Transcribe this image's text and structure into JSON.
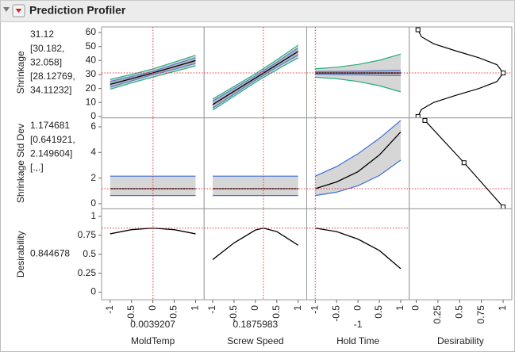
{
  "title": "Prediction Profiler",
  "chart_data": {
    "type": "profiler",
    "colors": {
      "current": "#e0393e",
      "ci": "#3b6ed8",
      "pi": "#1fae7a",
      "curve": "#000000",
      "band": "#d6d6d6"
    },
    "desirability_label": "Desirability",
    "desirability_xlim": [
      -0.08,
      1.1
    ],
    "desirability_xticks": [
      0,
      0.25,
      0.5,
      0.75,
      1
    ],
    "factors": [
      {
        "name": "MoldTemp",
        "current": 0.0039207,
        "xlim": [
          -1.2,
          1.2
        ],
        "xticks": [
          -1,
          -0.5,
          0,
          0.5,
          1
        ]
      },
      {
        "name": "Screw Speed",
        "current": 0.1875983,
        "xlim": [
          -1.2,
          1.2
        ],
        "xticks": [
          -1,
          -0.5,
          0,
          0.5,
          1
        ]
      },
      {
        "name": "Hold Time",
        "current": -1,
        "xlim": [
          -1.2,
          1.2
        ],
        "xticks": [
          -1,
          -0.5,
          0,
          0.5,
          1
        ]
      }
    ],
    "responses": [
      {
        "name": "Shrinkage",
        "current": 31.12,
        "value_color": "#e0393e",
        "ci_lines": [
          "[30.182,",
          "32.058]"
        ],
        "pi_lines": [
          "[28.12769,",
          "34.11232]"
        ],
        "ylim": [
          -1,
          64
        ],
        "yticks": [
          0,
          10,
          20,
          30,
          40,
          50,
          60
        ],
        "curves": [
          {
            "x": [
              -1,
              -0.5,
              0,
              0.5,
              1
            ],
            "values": [
              23,
              27,
              31.1,
              35.5,
              40
            ],
            "ci_lower": [
              21,
              25.5,
              30,
              33.8,
              38
            ],
            "ci_upper": [
              25,
              28.5,
              32.2,
              37.2,
              42
            ],
            "pi_lower": [
              19.5,
              24,
              28.2,
              32.2,
              36.2
            ],
            "pi_upper": [
              26.5,
              30,
              34,
              38.8,
              43.8
            ]
          },
          {
            "x": [
              -1,
              -0.5,
              0,
              0.5,
              1
            ],
            "values": [
              8.5,
              18,
              27.5,
              37,
              46.5
            ],
            "ci_lower": [
              6,
              16,
              26,
              35.3,
              44
            ],
            "ci_upper": [
              11,
              20,
              29,
              38.7,
              49
            ],
            "pi_lower": [
              4.5,
              14.5,
              24.5,
              33.5,
              42
            ],
            "pi_upper": [
              12.5,
              21.5,
              30.5,
              40.5,
              51
            ]
          },
          {
            "x": [
              -1,
              -0.5,
              0,
              0.5,
              1
            ],
            "values": [
              31.1,
              31.1,
              31.1,
              31.1,
              31.1
            ],
            "ci_lower": [
              30.2,
              30,
              29.8,
              29.5,
              29.2
            ],
            "ci_upper": [
              32.1,
              32.2,
              32.4,
              32.7,
              33
            ],
            "pi_lower": [
              28.1,
              27,
              25,
              22,
              17.6
            ],
            "pi_upper": [
              34.1,
              35.2,
              37.2,
              40.2,
              44.6
            ]
          }
        ],
        "desirability": {
          "x": [
            0.02,
            0.06,
            0.2,
            0.45,
            0.72,
            0.93,
            1.0,
            0.93,
            0.72,
            0.45,
            0.2,
            0.06,
            0.02
          ],
          "y": [
            0,
            5,
            10,
            15,
            20,
            25,
            31.12,
            37,
            42,
            47,
            52,
            57,
            62
          ],
          "handles_x": [
            0.02,
            1.0,
            0.02
          ],
          "handles_y": [
            0,
            31.12,
            62
          ]
        }
      },
      {
        "name": "Shrinkage Std Dev",
        "current": 1.174681,
        "value_color": "#e0393e",
        "ci_lines": [
          "[0.641921,",
          "2.149604]"
        ],
        "pi_lines": [
          "[.,.]"
        ],
        "ylim": [
          -0.4,
          6.7
        ],
        "yticks": [
          0,
          2,
          4,
          6
        ],
        "curves": [
          {
            "x": [
              -1,
              -0.5,
              0,
              0.5,
              1
            ],
            "values": [
              1.17,
              1.17,
              1.17,
              1.17,
              1.17
            ],
            "ci_lower": [
              0.64,
              0.64,
              0.64,
              0.64,
              0.64
            ],
            "ci_upper": [
              2.15,
              2.15,
              2.15,
              2.15,
              2.15
            ]
          },
          {
            "x": [
              -1,
              -0.5,
              0,
              0.5,
              1
            ],
            "values": [
              1.17,
              1.17,
              1.17,
              1.17,
              1.17
            ],
            "ci_lower": [
              0.64,
              0.64,
              0.64,
              0.64,
              0.64
            ],
            "ci_upper": [
              2.15,
              2.15,
              2.15,
              2.15,
              2.15
            ]
          },
          {
            "x": [
              -1,
              -0.5,
              0,
              0.5,
              1
            ],
            "values": [
              1.17,
              1.7,
              2.5,
              3.8,
              5.6
            ],
            "ci_lower": [
              0.64,
              0.9,
              1.4,
              2.2,
              3.4
            ],
            "ci_upper": [
              2.15,
              2.9,
              3.9,
              5.1,
              6.5
            ]
          }
        ],
        "desirability": {
          "x": [
            0.1,
            0.55,
            1.0
          ],
          "y": [
            6.5,
            3.2,
            -0.25
          ],
          "handles_x": [
            0.1,
            0.55,
            1.0
          ],
          "handles_y": [
            6.5,
            3.2,
            -0.25
          ]
        }
      },
      {
        "name": "Desirability",
        "current": 0.844678,
        "value_color": "#000000",
        "ylim": [
          -0.1,
          1.1
        ],
        "yticks": [
          0,
          0.25,
          0.5,
          0.75,
          1
        ],
        "curves": [
          {
            "x": [
              -1,
              -0.5,
              0,
              0.5,
              1
            ],
            "values": [
              0.77,
              0.825,
              0.845,
              0.825,
              0.77
            ]
          },
          {
            "x": [
              -1,
              -0.5,
              0,
              0.1876,
              0.5,
              1
            ],
            "values": [
              0.43,
              0.65,
              0.82,
              0.845,
              0.8,
              0.62
            ]
          },
          {
            "x": [
              -1,
              -0.5,
              0,
              0.5,
              1
            ],
            "values": [
              0.845,
              0.8,
              0.7,
              0.55,
              0.31
            ]
          }
        ]
      }
    ]
  }
}
